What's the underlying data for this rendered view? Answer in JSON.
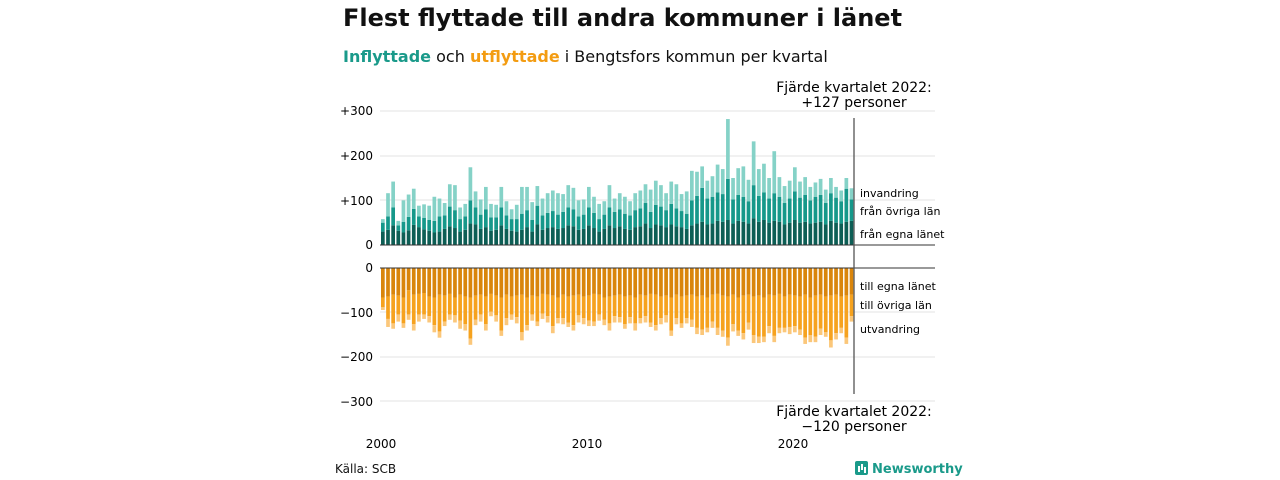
{
  "title": "Flest flyttade till andra kommuner i länet",
  "subtitle": {
    "part1": "Inflyttade",
    "part2": " och ",
    "part3": "utflyttade",
    "part4": " i Bengtsfors kommun per kvartal"
  },
  "source": "Källa: SCB",
  "brand": "Newsworthy",
  "colors": {
    "in_egna": "#0d5e55",
    "in_ovriga": "#16988a",
    "in_invandring": "#85d2c7",
    "out_egna": "#d9850c",
    "out_ovriga": "#f6a21e",
    "out_utvandring": "#fbc77a"
  },
  "chart_data": {
    "type": "bar",
    "stacked": true,
    "x_ticks": [
      "2000",
      "2010",
      "2020"
    ],
    "y_ticks_top": [
      "+300",
      "+200",
      "+100",
      "0"
    ],
    "y_ticks_bottom": [
      "0",
      "−100",
      "−200",
      "−300"
    ],
    "top_ylim": [
      0,
      300
    ],
    "bottom_ylim": [
      -300,
      0
    ],
    "grid": true,
    "annotation_top": {
      "line1": "Fjärde kvartalet 2022:",
      "line2": "+127 personer"
    },
    "annotation_bottom": {
      "line1": "Fjärde kvartalet 2022:",
      "line2": "−120 personer"
    },
    "inflyttade": {
      "series_names": [
        "från egna länet",
        "från övriga län",
        "invandring"
      ],
      "egna": [
        30,
        34,
        44,
        32,
        28,
        33,
        45,
        40,
        35,
        32,
        28,
        30,
        36,
        42,
        38,
        30,
        34,
        48,
        46,
        36,
        40,
        32,
        34,
        44,
        36,
        32,
        30,
        34,
        40,
        30,
        46,
        34,
        38,
        40,
        36,
        38,
        44,
        42,
        34,
        36,
        44,
        38,
        30,
        36,
        44,
        38,
        42,
        36,
        34,
        40,
        42,
        48,
        38,
        46,
        44,
        40,
        46,
        42,
        40,
        36,
        44,
        48,
        52,
        46,
        48,
        54,
        52,
        56,
        48,
        54,
        52,
        48,
        60,
        52,
        56,
        50,
        54,
        52,
        46,
        50,
        56,
        50,
        52,
        48,
        50,
        52,
        46,
        54,
        50,
        48,
        52,
        54
      ],
      "ovriga": [
        20,
        30,
        40,
        12,
        24,
        30,
        36,
        24,
        26,
        24,
        26,
        34,
        30,
        44,
        40,
        28,
        30,
        52,
        38,
        32,
        40,
        30,
        28,
        40,
        30,
        26,
        28,
        36,
        38,
        26,
        42,
        32,
        34,
        36,
        32,
        36,
        40,
        38,
        30,
        32,
        40,
        34,
        28,
        32,
        40,
        36,
        38,
        34,
        32,
        38,
        40,
        46,
        36,
        44,
        42,
        38,
        46,
        40,
        36,
        34,
        56,
        62,
        76,
        58,
        60,
        64,
        62,
        92,
        54,
        58,
        56,
        50,
        74,
        58,
        62,
        54,
        62,
        56,
        48,
        54,
        64,
        56,
        60,
        52,
        58,
        60,
        48,
        62,
        56,
        50,
        74,
        48
      ],
      "invandring": [
        8,
        52,
        58,
        10,
        48,
        50,
        45,
        24,
        30,
        32,
        54,
        40,
        28,
        50,
        56,
        26,
        28,
        74,
        36,
        34,
        50,
        30,
        28,
        46,
        32,
        22,
        32,
        60,
        52,
        40,
        44,
        38,
        44,
        46,
        48,
        40,
        50,
        48,
        36,
        34,
        46,
        36,
        34,
        30,
        50,
        30,
        36,
        38,
        32,
        38,
        40,
        42,
        50,
        54,
        48,
        38,
        50,
        54,
        38,
        50,
        66,
        54,
        48,
        40,
        46,
        62,
        56,
        134,
        48,
        60,
        68,
        48,
        98,
        60,
        64,
        46,
        94,
        44,
        38,
        40,
        54,
        36,
        40,
        30,
        32,
        36,
        30,
        34,
        24,
        24,
        24,
        25
      ]
    },
    "utflyttade": {
      "series_names": [
        "till egna länet",
        "till övriga län",
        "utvandring"
      ],
      "egna": [
        66,
        64,
        60,
        62,
        66,
        50,
        60,
        58,
        56,
        64,
        66,
        60,
        62,
        58,
        66,
        60,
        64,
        66,
        62,
        60,
        64,
        58,
        62,
        66,
        60,
        64,
        62,
        60,
        66,
        62,
        64,
        58,
        60,
        62,
        66,
        60,
        64,
        62,
        60,
        64,
        62,
        58,
        60,
        66,
        64,
        62,
        60,
        64,
        62,
        66,
        60,
        62,
        58,
        60,
        64,
        62,
        66,
        60,
        64,
        62,
        60,
        64,
        62,
        66,
        60,
        58,
        62,
        64,
        60,
        66,
        62,
        60,
        64,
        62,
        66,
        60,
        62,
        58,
        64,
        60,
        62,
        64,
        60,
        66,
        62,
        60,
        64,
        62,
        60,
        64,
        62,
        60
      ],
      "ovriga": [
        22,
        50,
        64,
        42,
        58,
        54,
        66,
        46,
        48,
        44,
        62,
        82,
        58,
        46,
        40,
        58,
        62,
        92,
        54,
        44,
        62,
        40,
        44,
        74,
        52,
        40,
        48,
        84,
        62,
        42,
        56,
        44,
        48,
        68,
        46,
        52,
        58,
        66,
        46,
        48,
        56,
        62,
        44,
        50,
        60,
        46,
        50,
        62,
        48,
        58,
        52,
        46,
        64,
        68,
        48,
        44,
        74,
        52,
        60,
        50,
        56,
        70,
        76,
        68,
        60,
        76,
        78,
        92,
        66,
        74,
        84,
        62,
        86,
        92,
        88,
        70,
        90,
        76,
        70,
        72,
        68,
        74,
        96,
        84,
        92,
        76,
        80,
        100,
        86,
        70,
        94,
        48
      ],
      "utvandring": [
        6,
        18,
        12,
        16,
        10,
        12,
        14,
        16,
        10,
        14,
        16,
        14,
        10,
        12,
        16,
        18,
        14,
        14,
        12,
        16,
        14,
        10,
        14,
        12,
        16,
        12,
        14,
        18,
        12,
        14,
        10,
        12,
        14,
        16,
        12,
        14,
        10,
        12,
        16,
        14,
        12,
        10,
        14,
        12,
        16,
        14,
        12,
        10,
        14,
        16,
        12,
        14,
        10,
        12,
        14,
        16,
        12,
        14,
        10,
        12,
        16,
        14,
        12,
        10,
        14,
        16,
        14,
        18,
        16,
        12,
        14,
        16,
        18,
        14,
        12,
        16,
        14,
        12,
        10,
        16,
        14,
        12,
        14,
        16,
        12,
        14,
        10,
        16,
        14,
        12,
        14,
        12
      ]
    }
  }
}
